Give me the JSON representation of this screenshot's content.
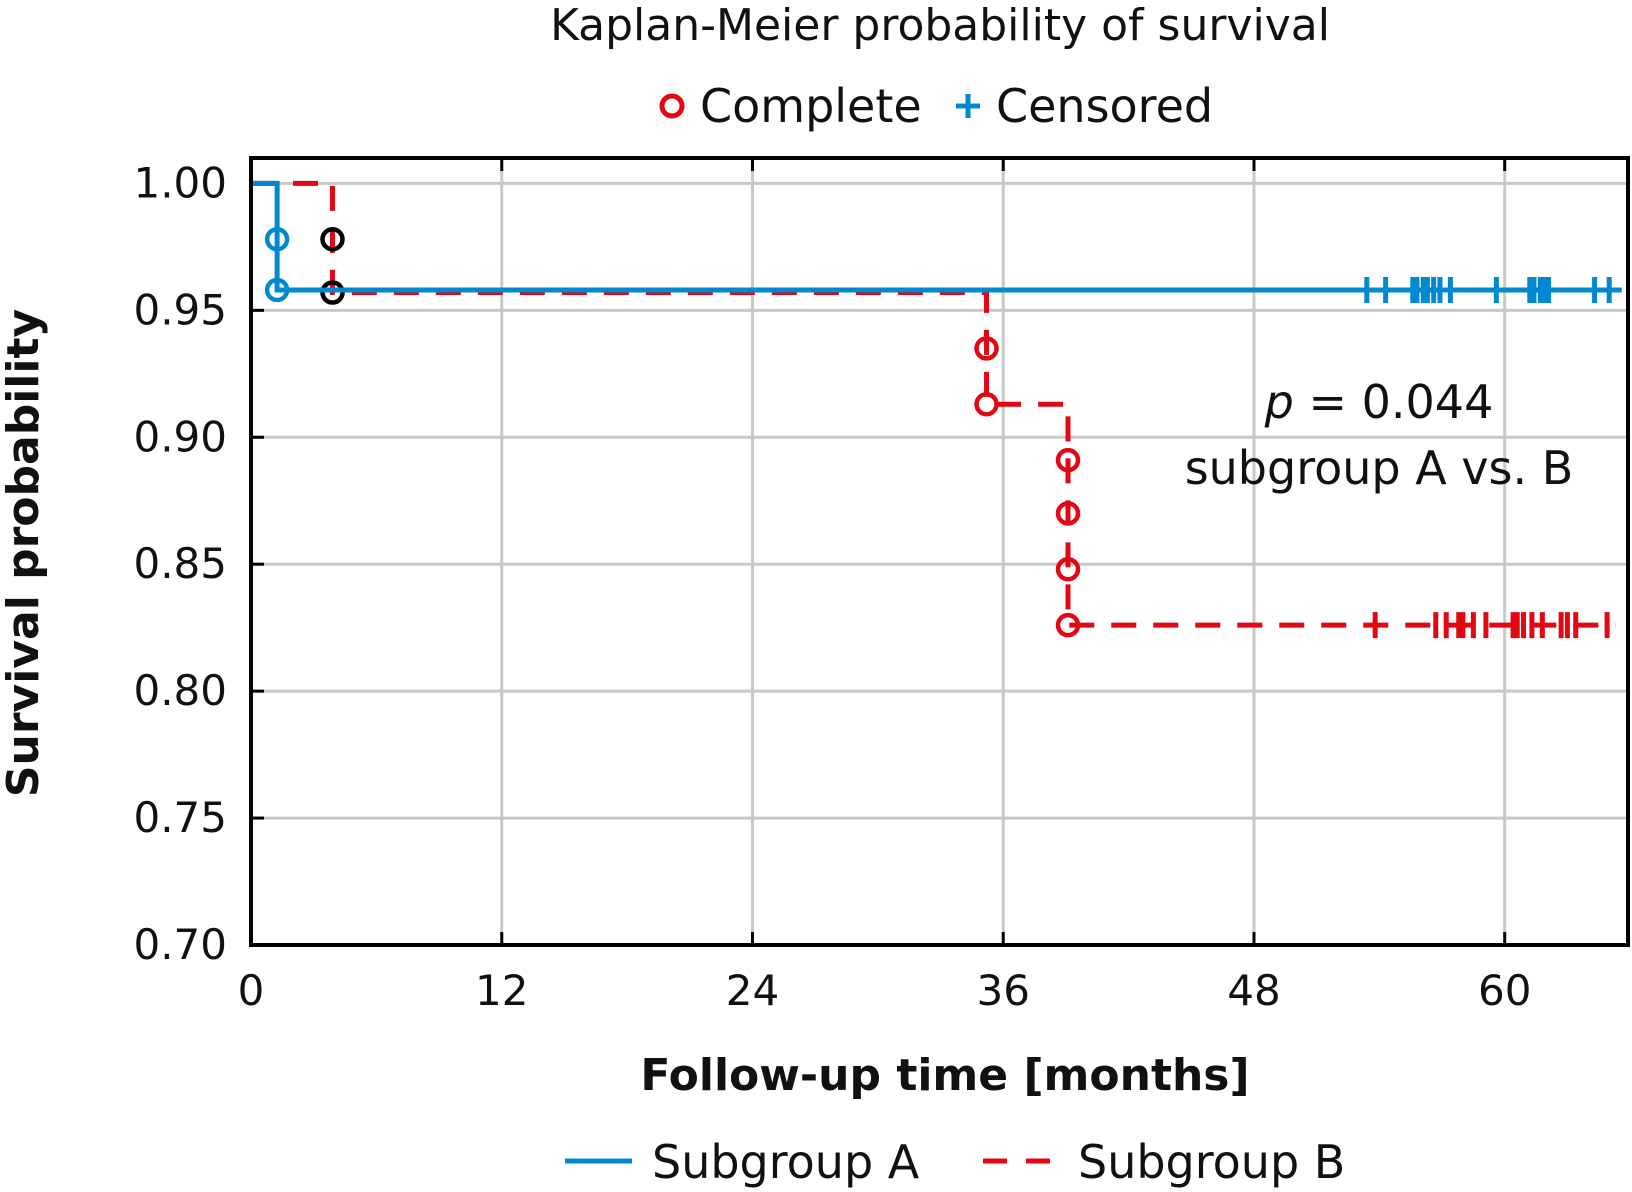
{
  "chart_data": {
    "type": "line",
    "subtype": "kaplan-meier step",
    "title": "Kaplan-Meier probability of survival",
    "xlabel": "Follow-up time [months]",
    "ylabel": "Survival probability",
    "xlim": [
      0,
      65.9
    ],
    "ylim": [
      0.7,
      1.01
    ],
    "xticks": [
      0,
      12,
      24,
      36,
      48,
      60
    ],
    "xtick_labels": [
      "0",
      "12",
      "24",
      "36",
      "48",
      "60"
    ],
    "yticks": [
      1.0,
      0.95,
      0.9,
      0.85,
      0.8,
      0.75,
      0.7
    ],
    "ytick_labels": [
      "1.00",
      "0.95",
      "0.90",
      "0.85",
      "0.80",
      "0.75",
      "0.70"
    ],
    "grid": true,
    "marker_legend": {
      "placement": "top-center",
      "items": [
        {
          "label": "Complete",
          "marker": "circle",
          "color": "#e30613"
        },
        {
          "label": "Censored",
          "marker": "plus",
          "color": "#0088d1"
        }
      ]
    },
    "series_legend": {
      "placement": "bottom-center",
      "items": [
        {
          "label": "Subgroup A",
          "style": "solid",
          "color": "#0088d1"
        },
        {
          "label": "Subgroup B",
          "style": "dashed",
          "color": "#e30613"
        }
      ]
    },
    "annotation": {
      "p_symbol": "p",
      "p_text": " = 0.044",
      "comparison": "subgroup A vs. B",
      "position_months": 52.5,
      "position_prob": 0.91
    },
    "series": [
      {
        "name": "Subgroup A",
        "color": "#0088d1",
        "style": "solid",
        "steps": [
          {
            "t": 0,
            "s": 1.0
          },
          {
            "t": 1.25,
            "s": 0.958
          }
        ],
        "end_time": 65.6,
        "event_markers": [
          {
            "t": 1.25,
            "s": 0.978,
            "color": "#0088d1"
          },
          {
            "t": 1.25,
            "s": 0.958,
            "color": "#0088d1"
          }
        ],
        "censored_times": [
          53.4,
          54.3,
          55.6,
          55.8,
          56.1,
          56.3,
          56.6,
          56.9,
          57.4,
          59.6,
          61.2,
          61.4,
          61.7,
          61.9,
          62.1,
          64.3,
          65.0
        ]
      },
      {
        "name": "Subgroup B",
        "color": "#e30613",
        "style": "dashed",
        "steps": [
          {
            "t": 0,
            "s": 1.0
          },
          {
            "t": 3.9,
            "s": 0.957
          },
          {
            "t": 35.2,
            "s": 0.913
          },
          {
            "t": 39.1,
            "s": 0.826
          }
        ],
        "end_time": 65.3,
        "event_markers": [
          {
            "t": 3.9,
            "s": 0.978,
            "color": "#000000"
          },
          {
            "t": 3.9,
            "s": 0.957,
            "color": "#000000"
          },
          {
            "t": 35.2,
            "s": 0.935,
            "color": "#e30613"
          },
          {
            "t": 35.2,
            "s": 0.913,
            "color": "#e30613"
          },
          {
            "t": 39.1,
            "s": 0.891,
            "color": "#e30613"
          },
          {
            "t": 39.1,
            "s": 0.87,
            "color": "#e30613"
          },
          {
            "t": 39.1,
            "s": 0.848,
            "color": "#e30613"
          },
          {
            "t": 39.1,
            "s": 0.826,
            "color": "#e30613"
          }
        ],
        "censored_times": [
          53.8,
          56.7,
          57.2,
          57.8,
          58.0,
          58.5,
          59.1,
          60.4,
          60.6,
          60.9,
          61.3,
          61.8,
          62.7,
          63.0,
          63.4,
          64.9
        ]
      }
    ]
  }
}
